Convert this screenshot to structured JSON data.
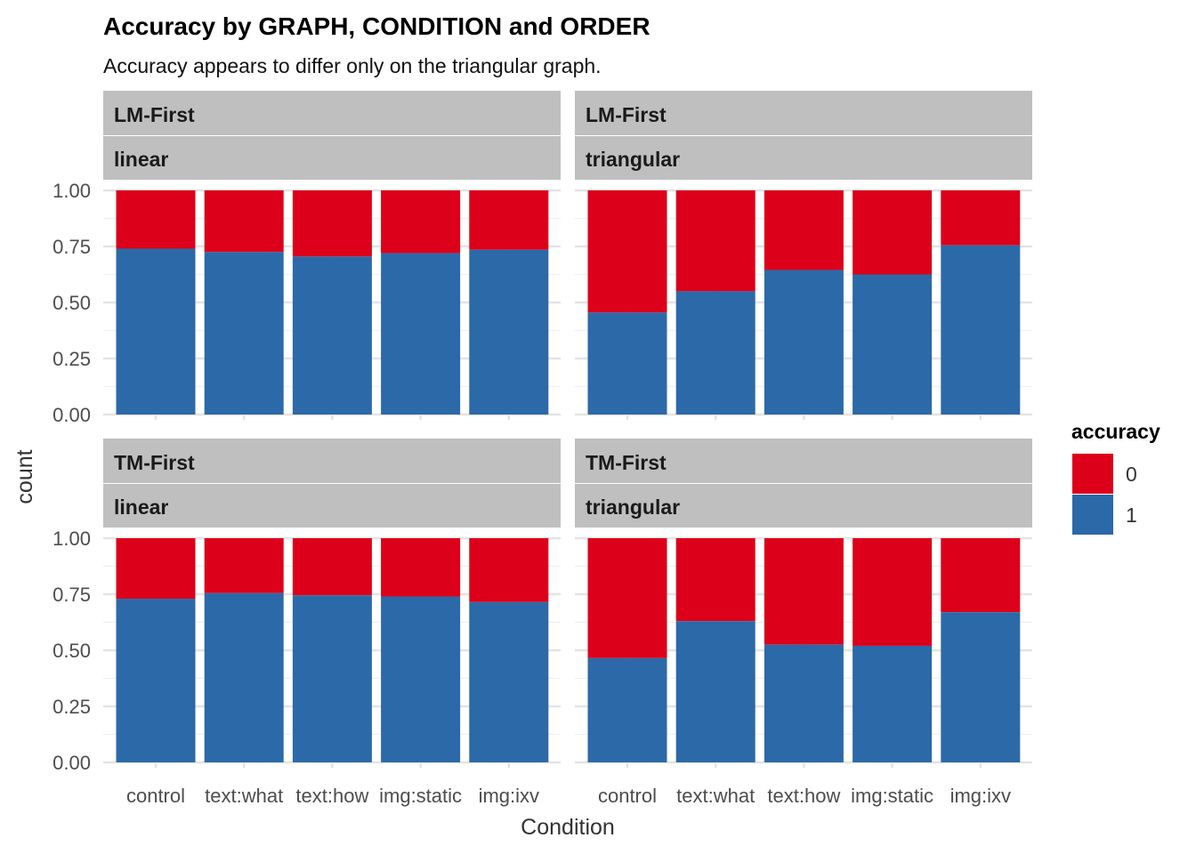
{
  "chart_data": {
    "type": "bar",
    "stacked": "proportion",
    "title": "Accuracy by GRAPH, CONDITION and ORDER",
    "subtitle": "Accuracy appears to differ only on the triangular graph.",
    "xlabel": "Condition",
    "ylabel": "count",
    "ylim": [
      0,
      1
    ],
    "yticks": [
      "0.00",
      "0.25",
      "0.50",
      "0.75",
      "1.00"
    ],
    "grid": true,
    "categories": [
      "control",
      "text:what",
      "text:how",
      "img:static",
      "img:ixv"
    ],
    "legend": {
      "title": "accuracy",
      "position": "right",
      "entries": [
        {
          "label": "0",
          "color": "#DC001A"
        },
        {
          "label": "1",
          "color": "#2C69A8"
        }
      ]
    },
    "facets": [
      {
        "order": "LM-First",
        "graph": "linear",
        "series": [
          {
            "name": "1",
            "values": [
              0.74,
              0.725,
              0.705,
              0.72,
              0.735
            ]
          }
        ]
      },
      {
        "order": "LM-First",
        "graph": "triangular",
        "series": [
          {
            "name": "1",
            "values": [
              0.455,
              0.55,
              0.645,
              0.625,
              0.755
            ]
          }
        ]
      },
      {
        "order": "TM-First",
        "graph": "linear",
        "series": [
          {
            "name": "1",
            "values": [
              0.73,
              0.755,
              0.745,
              0.74,
              0.715
            ]
          }
        ]
      },
      {
        "order": "TM-First",
        "graph": "triangular",
        "series": [
          {
            "name": "1",
            "values": [
              0.465,
              0.63,
              0.525,
              0.52,
              0.67
            ]
          }
        ]
      }
    ]
  }
}
